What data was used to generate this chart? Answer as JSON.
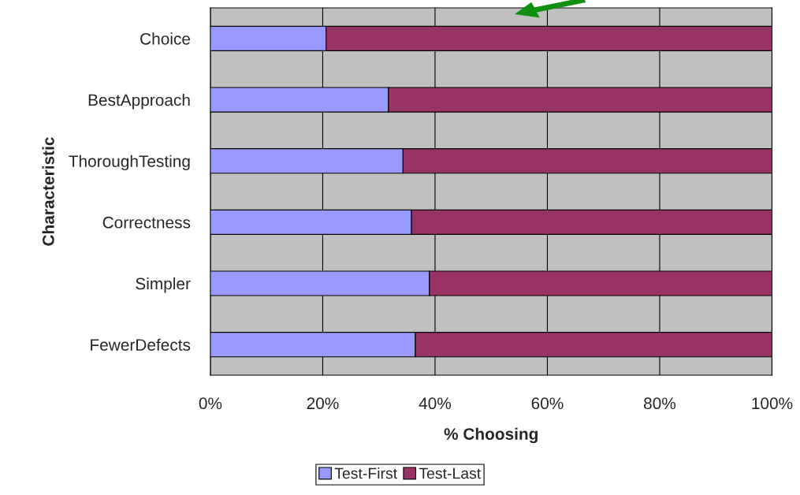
{
  "chart_data": {
    "type": "bar",
    "orientation": "horizontal",
    "stacked": true,
    "categories": [
      "Choice",
      "BestApproach",
      "ThoroughTesting",
      "Correctness",
      "Simpler",
      "FewerDefects"
    ],
    "series": [
      {
        "name": "Test-First",
        "color": "#9999ff",
        "values": [
          20.6,
          31.7,
          34.3,
          35.8,
          39.0,
          36.5
        ]
      },
      {
        "name": "Test-Last",
        "color": "#993366",
        "values": [
          79.4,
          68.3,
          65.7,
          64.2,
          61.0,
          63.5
        ]
      }
    ],
    "xlabel": "% Choosing",
    "ylabel": "Characteristic",
    "xlim": [
      0,
      100
    ],
    "xticks": [
      {
        "value": 0,
        "label": "0%"
      },
      {
        "value": 20,
        "label": "20%"
      },
      {
        "value": 40,
        "label": "40%"
      },
      {
        "value": 60,
        "label": "60%"
      },
      {
        "value": 80,
        "label": "80%"
      },
      {
        "value": 100,
        "label": "100%"
      }
    ],
    "grid": "x",
    "legend": "bottom"
  }
}
